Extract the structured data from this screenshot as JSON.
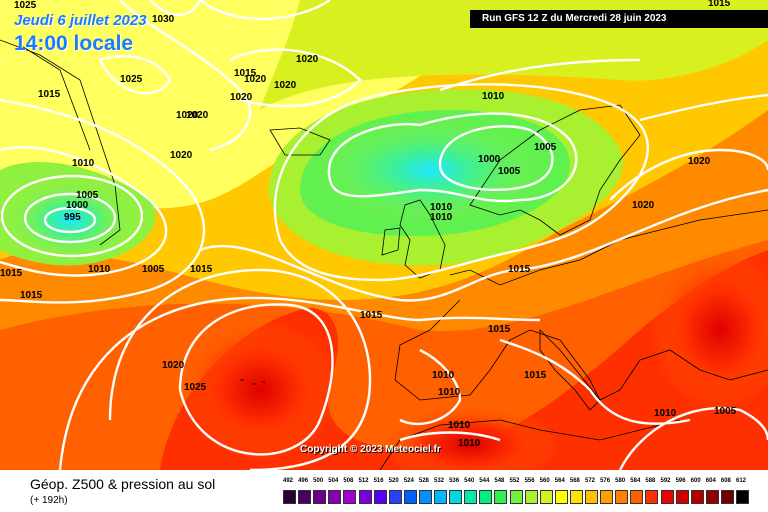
{
  "header": {
    "date_line": "Jeudi 6 juillet 2023",
    "time_line": "14:00 locale",
    "run_label": "Run GFS 12 Z du Mercredi 28 juin 2023"
  },
  "map": {
    "copyright": "Copyright © 2023 Meteociel.fr",
    "pressure_labels": [
      {
        "value": "1025",
        "pos": "top-left"
      },
      {
        "value": "1030",
        "pos": "top-left"
      },
      {
        "value": "1025",
        "pos": "greenland"
      },
      {
        "value": "1015",
        "pos": "greenland"
      },
      {
        "value": "1020",
        "pos": "greenland"
      },
      {
        "value": "1020",
        "pos": "greenland"
      },
      {
        "value": "1020",
        "pos": "greenland"
      },
      {
        "value": "1020",
        "pos": "greenland"
      },
      {
        "value": "1020",
        "pos": "greenland"
      },
      {
        "value": "1015",
        "pos": "greenland"
      },
      {
        "value": "1020",
        "pos": "atlantic"
      },
      {
        "value": "1020",
        "pos": "atlantic"
      },
      {
        "value": "1010",
        "pos": "labrador"
      },
      {
        "value": "1005",
        "pos": "low"
      },
      {
        "value": "1000",
        "pos": "low"
      },
      {
        "value": "995",
        "pos": "low"
      },
      {
        "value": "1015",
        "pos": "west"
      },
      {
        "value": "1015",
        "pos": "west"
      },
      {
        "value": "1010",
        "pos": "atlantic"
      },
      {
        "value": "1005",
        "pos": "atlantic"
      },
      {
        "value": "1015",
        "pos": "atlantic"
      },
      {
        "value": "1010",
        "pos": "north-sea"
      },
      {
        "value": "1000",
        "pos": "norway"
      },
      {
        "value": "1005",
        "pos": "norway"
      },
      {
        "value": "1005",
        "pos": "norway"
      },
      {
        "value": "1010",
        "pos": "uk"
      },
      {
        "value": "1010",
        "pos": "uk"
      },
      {
        "value": "1015",
        "pos": "europe"
      },
      {
        "value": "1020",
        "pos": "russia"
      },
      {
        "value": "1020",
        "pos": "europe"
      },
      {
        "value": "1015",
        "pos": "atlantic"
      },
      {
        "value": "1015",
        "pos": "france"
      },
      {
        "value": "1020",
        "pos": "atlantic"
      },
      {
        "value": "1025",
        "pos": "azores"
      },
      {
        "value": "1010",
        "pos": "iberia"
      },
      {
        "value": "1010",
        "pos": "iberia"
      },
      {
        "value": "1015",
        "pos": "italy"
      },
      {
        "value": "1010",
        "pos": "africa"
      },
      {
        "value": "1010",
        "pos": "africa"
      },
      {
        "value": "1010",
        "pos": "balkans"
      },
      {
        "value": "1005",
        "pos": "turkey"
      },
      {
        "value": "1015",
        "pos": "top-right"
      }
    ]
  },
  "footer": {
    "title": "Géop. Z500 & pression au sol",
    "subtitle": "(+ 192h)",
    "scale_values": [
      "492",
      "496",
      "500",
      "504",
      "508",
      "512",
      "516",
      "520",
      "524",
      "528",
      "532",
      "536",
      "540",
      "544",
      "548",
      "552",
      "556",
      "560",
      "564",
      "568",
      "572",
      "576",
      "580",
      "584",
      "588",
      "592",
      "596",
      "600",
      "604",
      "608",
      "612"
    ],
    "scale_colors": [
      "#2a0033",
      "#4b0061",
      "#6a008a",
      "#8a00b0",
      "#a000d0",
      "#7b00e0",
      "#5500ff",
      "#2a40ff",
      "#0060ff",
      "#0090ff",
      "#00b8ff",
      "#00d8e0",
      "#00e8b0",
      "#00f080",
      "#30f050",
      "#70f040",
      "#a8f030",
      "#d8f020",
      "#ffff00",
      "#ffe000",
      "#ffc000",
      "#ffa000",
      "#ff8000",
      "#ff6000",
      "#ff3000",
      "#f00000",
      "#d00000",
      "#b00000",
      "#900000",
      "#700000",
      "#000000"
    ]
  }
}
